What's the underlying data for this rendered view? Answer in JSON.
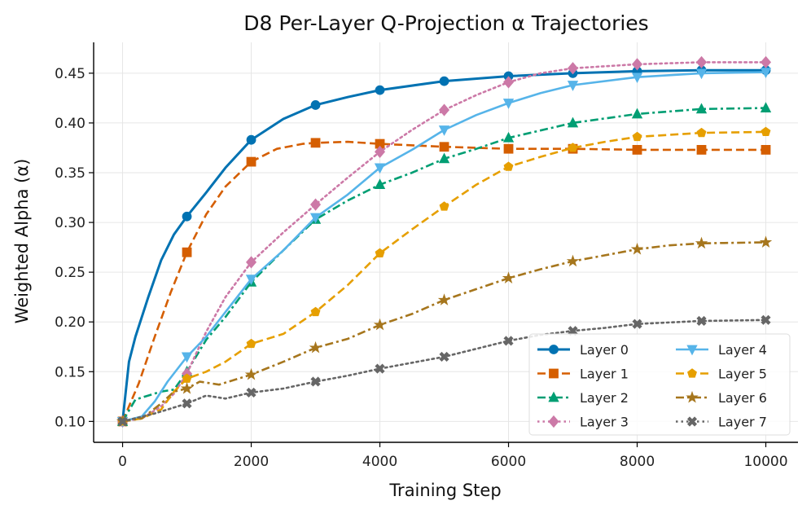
{
  "chart_data": {
    "type": "line",
    "title": "D8 Per-Layer Q-Projection α Trajectories",
    "xlabel": "Training Step",
    "ylabel": "Weighted Alpha (α)",
    "xlim": [
      -450,
      10500
    ],
    "ylim": [
      0.079,
      0.481
    ],
    "xticks": [
      0,
      2000,
      4000,
      6000,
      8000,
      10000
    ],
    "xtick_labels": [
      "0",
      "2000",
      "4000",
      "6000",
      "8000",
      "10000"
    ],
    "yticks": [
      0.1,
      0.15,
      0.2,
      0.25,
      0.3,
      0.35,
      0.4,
      0.45
    ],
    "ytick_labels": [
      "0.10",
      "0.15",
      "0.20",
      "0.25",
      "0.30",
      "0.35",
      "0.40",
      "0.45"
    ],
    "grid": true,
    "legend_position": "lower-right",
    "legend_columns": 2,
    "series": [
      {
        "name": "Layer 0",
        "color": "#0072B2",
        "dash": "solid",
        "marker": "circle",
        "x": [
          0,
          100,
          200,
          400,
          600,
          800,
          1000,
          1300,
          1600,
          2000,
          2500,
          3000,
          3500,
          4000,
          5000,
          6000,
          7000,
          8000,
          9000,
          10000
        ],
        "y": [
          0.1,
          0.16,
          0.185,
          0.225,
          0.262,
          0.288,
          0.306,
          0.33,
          0.355,
          0.383,
          0.404,
          0.418,
          0.426,
          0.433,
          0.442,
          0.447,
          0.45,
          0.452,
          0.453,
          0.453
        ],
        "marker_x": [
          0,
          1000,
          2000,
          3000,
          4000,
          5000,
          6000,
          7000,
          8000,
          9000,
          10000
        ],
        "marker_y": [
          0.1,
          0.306,
          0.383,
          0.418,
          0.433,
          0.442,
          0.447,
          0.45,
          0.452,
          0.453,
          0.453
        ]
      },
      {
        "name": "Layer 1",
        "color": "#D55E00",
        "dash": "dashed",
        "marker": "square",
        "x": [
          0,
          250,
          500,
          750,
          1000,
          1300,
          1600,
          2000,
          2400,
          2800,
          3000,
          3500,
          4000,
          5000,
          6000,
          7000,
          8000,
          9000,
          10000
        ],
        "y": [
          0.1,
          0.138,
          0.185,
          0.23,
          0.27,
          0.308,
          0.336,
          0.361,
          0.374,
          0.379,
          0.38,
          0.381,
          0.379,
          0.376,
          0.374,
          0.374,
          0.373,
          0.373,
          0.373
        ],
        "marker_x": [
          0,
          1000,
          2000,
          3000,
          4000,
          5000,
          6000,
          7000,
          8000,
          9000,
          10000
        ],
        "marker_y": [
          0.1,
          0.27,
          0.361,
          0.38,
          0.379,
          0.376,
          0.374,
          0.374,
          0.373,
          0.373,
          0.373
        ]
      },
      {
        "name": "Layer 2",
        "color": "#009E73",
        "dash": "dashdot",
        "marker": "triangle-up",
        "x": [
          0,
          200,
          400,
          600,
          800,
          1000,
          1300,
          1600,
          2000,
          2500,
          3000,
          3500,
          4000,
          4500,
          5000,
          5500,
          6000,
          7000,
          8000,
          9000,
          10000
        ],
        "y": [
          0.1,
          0.122,
          0.126,
          0.13,
          0.132,
          0.15,
          0.182,
          0.205,
          0.24,
          0.272,
          0.303,
          0.322,
          0.338,
          0.35,
          0.364,
          0.374,
          0.385,
          0.4,
          0.409,
          0.414,
          0.415
        ],
        "marker_x": [
          0,
          1000,
          2000,
          3000,
          4000,
          5000,
          6000,
          7000,
          8000,
          9000,
          10000
        ],
        "marker_y": [
          0.1,
          0.15,
          0.24,
          0.303,
          0.338,
          0.364,
          0.385,
          0.4,
          0.409,
          0.414,
          0.415
        ]
      },
      {
        "name": "Layer 3",
        "color": "#CC79A7",
        "dash": "dotted",
        "marker": "diamond",
        "x": [
          0,
          300,
          600,
          800,
          1000,
          1300,
          1600,
          2000,
          2500,
          3000,
          3500,
          4000,
          4500,
          5000,
          5500,
          6000,
          6500,
          7000,
          8000,
          9000,
          10000
        ],
        "y": [
          0.1,
          0.103,
          0.115,
          0.128,
          0.148,
          0.19,
          0.225,
          0.26,
          0.29,
          0.318,
          0.345,
          0.371,
          0.393,
          0.413,
          0.428,
          0.441,
          0.45,
          0.455,
          0.459,
          0.461,
          0.461
        ],
        "marker_x": [
          0,
          1000,
          2000,
          3000,
          4000,
          5000,
          6000,
          7000,
          8000,
          9000,
          10000
        ],
        "marker_y": [
          0.1,
          0.148,
          0.26,
          0.318,
          0.371,
          0.413,
          0.441,
          0.455,
          0.459,
          0.461,
          0.461
        ]
      },
      {
        "name": "Layer 4",
        "color": "#56B4E9",
        "dash": "solid",
        "marker": "triangle-down",
        "x": [
          0,
          300,
          500,
          700,
          1000,
          1300,
          1600,
          2000,
          2500,
          3000,
          3500,
          4000,
          4500,
          5000,
          5500,
          6000,
          6500,
          7000,
          8000,
          9000,
          10000
        ],
        "y": [
          0.1,
          0.105,
          0.12,
          0.14,
          0.165,
          0.185,
          0.21,
          0.243,
          0.272,
          0.305,
          0.328,
          0.355,
          0.373,
          0.393,
          0.408,
          0.42,
          0.43,
          0.438,
          0.446,
          0.45,
          0.451
        ],
        "marker_x": [
          0,
          1000,
          2000,
          3000,
          4000,
          5000,
          6000,
          7000,
          8000,
          9000,
          10000
        ],
        "marker_y": [
          0.1,
          0.165,
          0.243,
          0.305,
          0.355,
          0.393,
          0.42,
          0.438,
          0.446,
          0.45,
          0.451
        ]
      },
      {
        "name": "Layer 5",
        "color": "#E69F00",
        "dash": "dashed",
        "marker": "pentagon",
        "x": [
          0,
          300,
          600,
          800,
          1000,
          1300,
          1600,
          2000,
          2500,
          3000,
          3500,
          4000,
          4500,
          5000,
          5500,
          6000,
          6500,
          7000,
          7500,
          8000,
          9000,
          10000
        ],
        "y": [
          0.1,
          0.103,
          0.112,
          0.13,
          0.143,
          0.15,
          0.16,
          0.178,
          0.188,
          0.21,
          0.237,
          0.269,
          0.293,
          0.316,
          0.338,
          0.356,
          0.366,
          0.375,
          0.381,
          0.386,
          0.39,
          0.391
        ],
        "marker_x": [
          0,
          1000,
          2000,
          3000,
          4000,
          5000,
          6000,
          7000,
          8000,
          9000,
          10000
        ],
        "marker_y": [
          0.1,
          0.143,
          0.178,
          0.21,
          0.269,
          0.316,
          0.356,
          0.375,
          0.386,
          0.39,
          0.391
        ]
      },
      {
        "name": "Layer 6",
        "color": "#A6761D",
        "dash": "dashdot",
        "marker": "star",
        "x": [
          0,
          300,
          600,
          800,
          1000,
          1200,
          1500,
          2000,
          2500,
          3000,
          3500,
          4000,
          4500,
          5000,
          5500,
          6000,
          6500,
          7000,
          7500,
          8000,
          8500,
          9000,
          10000
        ],
        "y": [
          0.1,
          0.103,
          0.118,
          0.13,
          0.133,
          0.14,
          0.137,
          0.147,
          0.16,
          0.174,
          0.183,
          0.197,
          0.208,
          0.222,
          0.233,
          0.244,
          0.253,
          0.261,
          0.267,
          0.273,
          0.277,
          0.279,
          0.28
        ],
        "marker_x": [
          0,
          1000,
          2000,
          3000,
          4000,
          5000,
          6000,
          7000,
          8000,
          9000,
          10000
        ],
        "marker_y": [
          0.1,
          0.133,
          0.147,
          0.174,
          0.197,
          0.222,
          0.244,
          0.261,
          0.273,
          0.279,
          0.28
        ]
      },
      {
        "name": "Layer 7",
        "color": "#666666",
        "dash": "dotted",
        "marker": "x",
        "x": [
          0,
          500,
          1000,
          1300,
          1600,
          2000,
          2500,
          3000,
          3500,
          4000,
          4500,
          5000,
          5500,
          6000,
          6500,
          7000,
          7500,
          8000,
          9000,
          10000
        ],
        "y": [
          0.1,
          0.108,
          0.118,
          0.126,
          0.123,
          0.129,
          0.133,
          0.14,
          0.146,
          0.153,
          0.159,
          0.165,
          0.173,
          0.181,
          0.187,
          0.191,
          0.194,
          0.198,
          0.201,
          0.202
        ],
        "marker_x": [
          0,
          1000,
          2000,
          3000,
          4000,
          5000,
          6000,
          7000,
          8000,
          9000,
          10000
        ],
        "marker_y": [
          0.1,
          0.118,
          0.129,
          0.14,
          0.153,
          0.165,
          0.181,
          0.191,
          0.198,
          0.201,
          0.202
        ]
      }
    ]
  }
}
